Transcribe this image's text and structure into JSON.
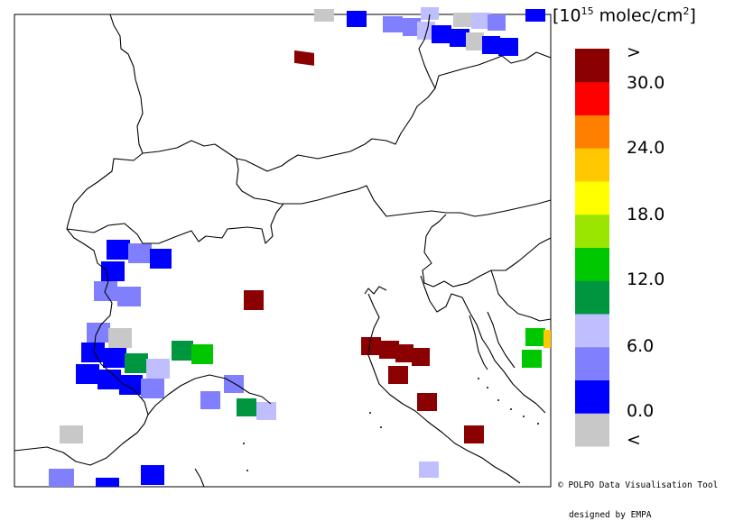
{
  "legend": {
    "unit_open": "[10",
    "unit_exp": "15",
    "unit_rest": " molec/cm",
    "unit_sup2": "2",
    "unit_close": "]",
    "bins": [
      {
        "color": "#c8c8c8"
      },
      {
        "color": "#0000ff"
      },
      {
        "color": "#8080ff"
      },
      {
        "color": "#bfbfff"
      },
      {
        "color": "#009640"
      },
      {
        "color": "#00c800"
      },
      {
        "color": "#9be600"
      },
      {
        "color": "#ffff00"
      },
      {
        "color": "#ffc800"
      },
      {
        "color": "#ff8000"
      },
      {
        "color": "#ff0000"
      },
      {
        "color": "#8b0000"
      }
    ],
    "labels": {
      "above": ">",
      "v30": "30.0",
      "v24": "24.0",
      "v18": "18.0",
      "v12": "12.0",
      "v6": "6.0",
      "v0": "0.0",
      "below": "<"
    }
  },
  "credit": {
    "line1": "© POLPO Data Visualisation Tool",
    "line2": "designed by EMPA"
  }
}
